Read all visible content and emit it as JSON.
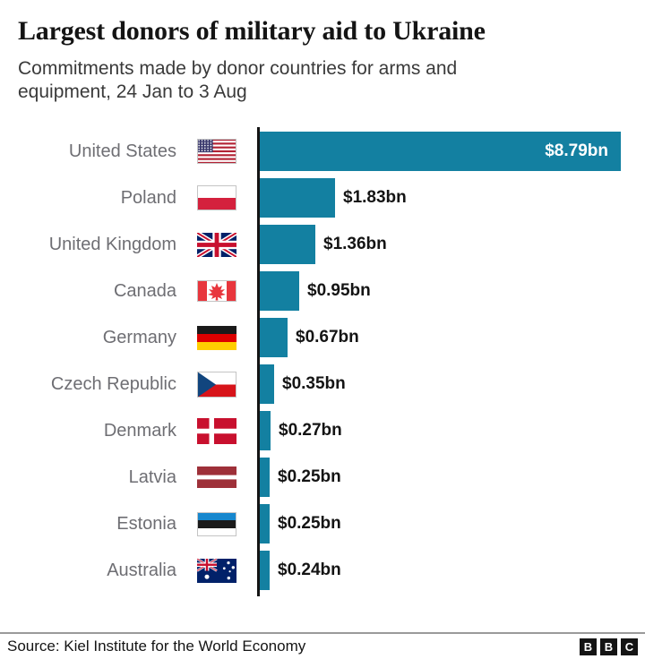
{
  "header": {
    "title": "Largest donors of military aid to Ukraine",
    "subtitle": "Commitments made by donor countries for arms and equipment, 24 Jan to 3 Aug"
  },
  "chart_data": {
    "type": "bar",
    "orientation": "horizontal",
    "title": "Largest donors of military aid to Ukraine",
    "unit": "US $ billions",
    "xlim": [
      0,
      8.79
    ],
    "grid": false,
    "legend": "none",
    "categories": [
      "United States",
      "Poland",
      "United Kingdom",
      "Canada",
      "Germany",
      "Czech Republic",
      "Denmark",
      "Latvia",
      "Estonia",
      "Australia"
    ],
    "values": [
      8.79,
      1.83,
      1.36,
      0.95,
      0.67,
      0.35,
      0.27,
      0.25,
      0.25,
      0.24
    ],
    "rows": [
      {
        "country": "United States",
        "flag": "us-flag",
        "value": 8.79,
        "label": "$8.79bn",
        "label_position": "inside"
      },
      {
        "country": "Poland",
        "flag": "poland-flag",
        "value": 1.83,
        "label": "$1.83bn",
        "label_position": "outside"
      },
      {
        "country": "United Kingdom",
        "flag": "uk-flag",
        "value": 1.36,
        "label": "$1.36bn",
        "label_position": "outside"
      },
      {
        "country": "Canada",
        "flag": "canada-flag",
        "value": 0.95,
        "label": "$0.95bn",
        "label_position": "outside"
      },
      {
        "country": "Germany",
        "flag": "germany-flag",
        "value": 0.67,
        "label": "$0.67bn",
        "label_position": "outside"
      },
      {
        "country": "Czech Republic",
        "flag": "czech-flag",
        "value": 0.35,
        "label": "$0.35bn",
        "label_position": "outside"
      },
      {
        "country": "Denmark",
        "flag": "denmark-flag",
        "value": 0.27,
        "label": "$0.27bn",
        "label_position": "outside"
      },
      {
        "country": "Latvia",
        "flag": "latvia-flag",
        "value": 0.25,
        "label": "$0.25bn",
        "label_position": "outside"
      },
      {
        "country": "Estonia",
        "flag": "estonia-flag",
        "value": 0.25,
        "label": "$0.25bn",
        "label_position": "outside"
      },
      {
        "country": "Australia",
        "flag": "australia-flag",
        "value": 0.24,
        "label": "$0.24bn",
        "label_position": "outside"
      }
    ]
  },
  "footer": {
    "source": "Source: Kiel Institute for the World Economy",
    "logo_blocks": [
      "B",
      "B",
      "C"
    ]
  },
  "colors": {
    "background": "#ffffff",
    "bar": "#1380A1",
    "axis": "#141414",
    "title": "#141414",
    "subtitle": "#3a3a3a",
    "country_label": "#6e6e73",
    "value_label": "#141414",
    "divider": "#9a9a9a",
    "logo": "#141414"
  }
}
